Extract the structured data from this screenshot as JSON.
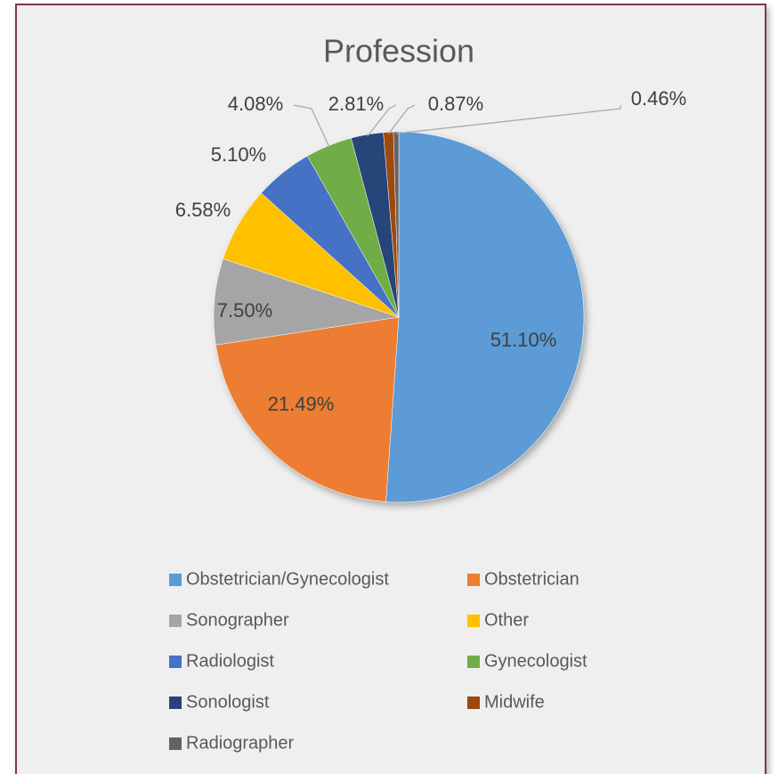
{
  "chart_data": {
    "type": "pie",
    "title": "Profession",
    "categories": [
      "Obstetrician/Gynecologist",
      "Obstetrician",
      "Sonographer",
      "Other",
      "Radiologist",
      "Gynecologist",
      "Sonologist",
      "Midwife",
      "Radiographer"
    ],
    "values": [
      51.1,
      21.49,
      7.5,
      6.58,
      5.1,
      4.08,
      2.81,
      0.87,
      0.46
    ],
    "value_labels": [
      "51.10%",
      "21.49%",
      "7.50%",
      "6.58%",
      "5.10%",
      "4.08%",
      "2.81%",
      "0.87%",
      "0.46%"
    ],
    "colors": [
      "#5b9bd5",
      "#ed7d31",
      "#a5a5a5",
      "#ffc000",
      "#4472c4",
      "#70ad47",
      "#264478",
      "#9e480e",
      "#636363"
    ],
    "legend": "bottom"
  }
}
